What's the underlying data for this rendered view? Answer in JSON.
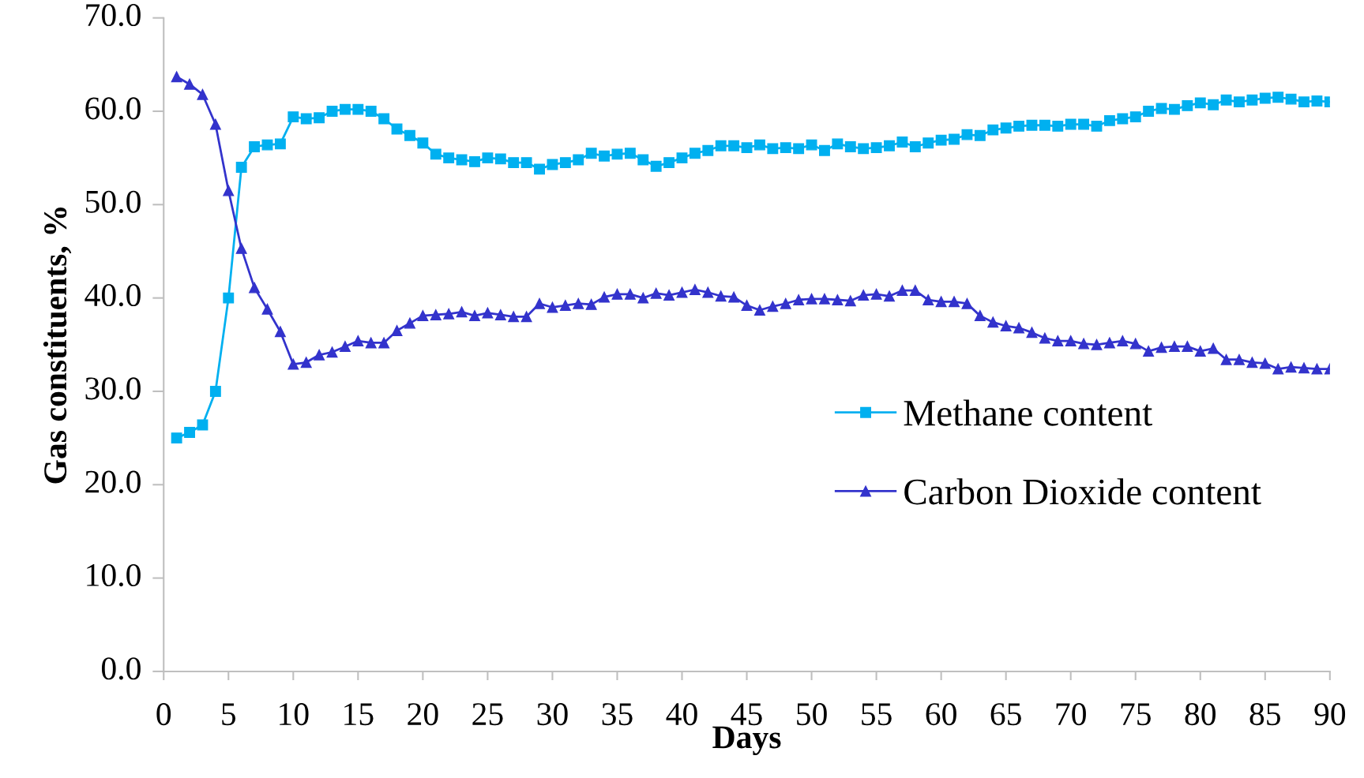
{
  "chart_data": {
    "type": "line",
    "xlabel": "Days",
    "ylabel": "Gas constituents, %",
    "series": [
      {
        "name": "Methane content",
        "color": "#00b0f0",
        "marker": "square",
        "x": [
          1,
          2,
          3,
          4,
          5,
          6,
          7,
          8,
          9,
          10,
          11,
          12,
          13,
          14,
          15,
          16,
          17,
          18,
          19,
          20,
          21,
          22,
          23,
          24,
          25,
          26,
          27,
          28,
          29,
          30,
          31,
          32,
          33,
          34,
          35,
          36,
          37,
          38,
          39,
          40,
          41,
          42,
          43,
          44,
          45,
          46,
          47,
          48,
          49,
          50,
          51,
          52,
          53,
          54,
          55,
          56,
          57,
          58,
          59,
          60,
          61,
          62,
          63,
          64,
          65,
          66,
          67,
          68,
          69,
          70,
          71,
          72,
          73,
          74,
          75,
          76,
          77,
          78,
          79,
          80,
          81,
          82,
          83,
          84,
          85,
          86,
          87,
          88,
          89,
          90
        ],
        "values": [
          25.0,
          25.6,
          26.4,
          30.0,
          40.0,
          54.0,
          56.2,
          56.4,
          56.5,
          59.4,
          59.2,
          59.3,
          60.0,
          60.2,
          60.2,
          60.0,
          59.2,
          58.1,
          57.4,
          56.6,
          55.4,
          55.0,
          54.8,
          54.6,
          55.0,
          54.9,
          54.5,
          54.5,
          53.8,
          54.3,
          54.5,
          54.8,
          55.5,
          55.2,
          55.4,
          55.5,
          54.8,
          54.1,
          54.5,
          55.0,
          55.5,
          55.8,
          56.3,
          56.3,
          56.1,
          56.4,
          56.0,
          56.1,
          56.0,
          56.4,
          55.8,
          56.5,
          56.2,
          56.0,
          56.1,
          56.3,
          56.7,
          56.2,
          56.6,
          56.9,
          57.0,
          57.5,
          57.4,
          58.0,
          58.2,
          58.4,
          58.5,
          58.5,
          58.4,
          58.6,
          58.6,
          58.4,
          59.0,
          59.2,
          59.4,
          60.0,
          60.3,
          60.2,
          60.6,
          60.9,
          60.7,
          61.2,
          61.0,
          61.2,
          61.4,
          61.5,
          61.3,
          61.0,
          61.1,
          61.0
        ]
      },
      {
        "name": "Carbon Dioxide content",
        "color": "#3333cc",
        "marker": "triangle",
        "x": [
          1,
          2,
          3,
          4,
          5,
          6,
          7,
          8,
          9,
          10,
          11,
          12,
          13,
          14,
          15,
          16,
          17,
          18,
          19,
          20,
          21,
          22,
          23,
          24,
          25,
          26,
          27,
          28,
          29,
          30,
          31,
          32,
          33,
          34,
          35,
          36,
          37,
          38,
          39,
          40,
          41,
          42,
          43,
          44,
          45,
          46,
          47,
          48,
          49,
          50,
          51,
          52,
          53,
          54,
          55,
          56,
          57,
          58,
          59,
          60,
          61,
          62,
          63,
          64,
          65,
          66,
          67,
          68,
          69,
          70,
          71,
          72,
          73,
          74,
          75,
          76,
          77,
          78,
          79,
          80,
          81,
          82,
          83,
          84,
          85,
          86,
          87,
          88,
          89,
          90
        ],
        "values": [
          63.7,
          62.9,
          61.8,
          58.6,
          51.5,
          45.3,
          41.1,
          38.8,
          36.4,
          32.9,
          33.1,
          33.9,
          34.2,
          34.8,
          35.4,
          35.2,
          35.2,
          36.5,
          37.3,
          38.1,
          38.2,
          38.3,
          38.5,
          38.1,
          38.4,
          38.2,
          38.0,
          38.0,
          39.4,
          39.0,
          39.2,
          39.4,
          39.3,
          40.1,
          40.4,
          40.4,
          40.0,
          40.5,
          40.3,
          40.6,
          40.9,
          40.6,
          40.2,
          40.1,
          39.2,
          38.7,
          39.1,
          39.4,
          39.8,
          39.9,
          39.9,
          39.8,
          39.7,
          40.3,
          40.4,
          40.2,
          40.8,
          40.8,
          39.8,
          39.6,
          39.6,
          39.4,
          38.1,
          37.4,
          37.0,
          36.8,
          36.3,
          35.7,
          35.4,
          35.4,
          35.1,
          35.0,
          35.2,
          35.4,
          35.1,
          34.3,
          34.7,
          34.8,
          34.8,
          34.3,
          34.6,
          33.4,
          33.4,
          33.1,
          33.0,
          32.4,
          32.6,
          32.5,
          32.4,
          32.4
        ]
      }
    ],
    "xlim": [
      0,
      90
    ],
    "xticks": [
      0,
      5,
      10,
      15,
      20,
      25,
      30,
      35,
      40,
      45,
      50,
      55,
      60,
      65,
      70,
      75,
      80,
      85,
      90
    ],
    "ylim": [
      0,
      70
    ],
    "yticks": [
      {
        "value": 0,
        "label": "0.0"
      },
      {
        "value": 10,
        "label": "10.0"
      },
      {
        "value": 20,
        "label": "20.0"
      },
      {
        "value": 30,
        "label": "30.0"
      },
      {
        "value": 40,
        "label": "40.0"
      },
      {
        "value": 50,
        "label": "50.0"
      },
      {
        "value": 60,
        "label": "60.0"
      },
      {
        "value": 70,
        "label": "70.0"
      }
    ],
    "grid": false,
    "legend": "center right",
    "line_style": "solid"
  }
}
